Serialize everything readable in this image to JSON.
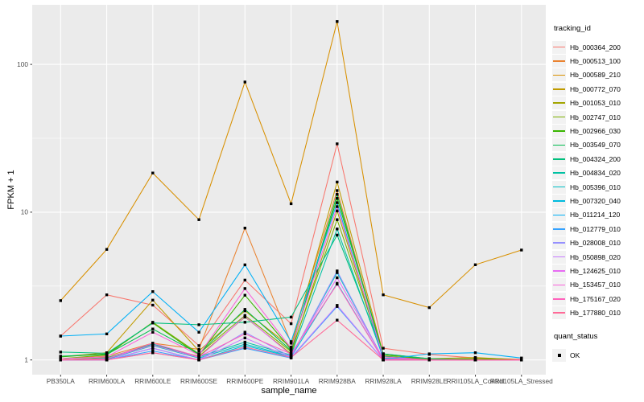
{
  "chart_data": {
    "type": "line",
    "title": "",
    "xlabel": "sample_name",
    "ylabel": "FPKM + 1",
    "y_scale": "log10",
    "ylim": [
      0.8,
      253
    ],
    "y_ticks": [
      1,
      10,
      100
    ],
    "y_tick_labels": [
      "1",
      "10",
      "100"
    ],
    "y_minor_ticks": [
      3.162,
      31.62
    ],
    "grid": true,
    "legend_position": "right",
    "legend_title": "tracking_id",
    "quant_legend_title": "quant_status",
    "quant_status_value": "OK",
    "marker": "black-square",
    "categories": [
      "PB350LA",
      "RRIM600LA",
      "RRIM600LE",
      "RRIM600SE",
      "RRIM600PE",
      "RRIM901LA",
      "RRIM928BA",
      "RRIM928LA",
      "RRIM928LE",
      "RRII105LA_Control",
      "RRII105LA_Stressed"
    ],
    "series": [
      {
        "name": "Hb_000364_200",
        "color": "#F8766D",
        "values": [
          1.45,
          2.76,
          2.35,
          1.25,
          3.47,
          1.76,
          29,
          1.2,
          1.09,
          1.03,
          1.01
        ]
      },
      {
        "name": "Hb_000513_100",
        "color": "#EA8331",
        "values": [
          1.02,
          1.06,
          1.3,
          1.18,
          7.8,
          1.3,
          14.0,
          1.06,
          1.01,
          1.02,
          1.0
        ]
      },
      {
        "name": "Hb_000589_210",
        "color": "#D89000",
        "values": [
          2.52,
          5.6,
          18.4,
          8.9,
          76,
          11.4,
          195,
          2.76,
          2.26,
          4.41,
          5.54
        ]
      },
      {
        "name": "Hb_000772_070",
        "color": "#C09B00",
        "values": [
          1.05,
          1.12,
          2.54,
          1.15,
          2.15,
          1.22,
          16.0,
          1.1,
          1.02,
          1.04,
          1.0
        ]
      },
      {
        "name": "Hb_001053_010",
        "color": "#A3A500",
        "values": [
          1.0,
          1.04,
          1.26,
          1.06,
          1.95,
          1.1,
          10.2,
          1.05,
          1.0,
          1.0,
          1.0
        ]
      },
      {
        "name": "Hb_002747_010",
        "color": "#7CAE00",
        "values": [
          1.02,
          1.08,
          1.8,
          1.1,
          2.0,
          1.14,
          8.9,
          1.08,
          1.02,
          1.0,
          1.0
        ]
      },
      {
        "name": "Hb_002966_030",
        "color": "#39B600",
        "values": [
          1.05,
          1.1,
          1.78,
          1.08,
          2.74,
          1.18,
          12.4,
          1.1,
          1.0,
          1.02,
          1.0
        ]
      },
      {
        "name": "Hb_003549_070",
        "color": "#00BB4E",
        "values": [
          1.06,
          1.09,
          1.62,
          1.1,
          2.2,
          1.16,
          13.2,
          1.06,
          1.0,
          1.0,
          1.0
        ]
      },
      {
        "name": "Hb_004324_200",
        "color": "#00BF7D",
        "values": [
          1.13,
          1.11,
          1.78,
          1.73,
          1.8,
          1.95,
          7.0,
          1.1,
          1.02,
          1.0,
          1.0
        ]
      },
      {
        "name": "Hb_004834_020",
        "color": "#00C1A3",
        "values": [
          1.0,
          1.03,
          1.28,
          1.05,
          1.32,
          1.08,
          7.7,
          1.03,
          1.0,
          1.0,
          1.0
        ]
      },
      {
        "name": "Hb_005396_010",
        "color": "#00BFC4",
        "values": [
          1.0,
          1.01,
          1.25,
          1.03,
          1.28,
          1.06,
          3.9,
          1.01,
          1.0,
          1.0,
          1.0
        ]
      },
      {
        "name": "Hb_007320_040",
        "color": "#00BADE",
        "values": [
          1.0,
          1.0,
          1.2,
          1.0,
          1.25,
          1.05,
          3.3,
          1.0,
          1.0,
          1.0,
          1.0
        ]
      },
      {
        "name": "Hb_011214_120",
        "color": "#00B0F6",
        "values": [
          1.45,
          1.5,
          2.9,
          1.54,
          4.4,
          1.33,
          11.6,
          1.01,
          1.1,
          1.12,
          1.03
        ]
      },
      {
        "name": "Hb_012779_010",
        "color": "#35A2FF",
        "values": [
          1.0,
          1.0,
          1.15,
          1.0,
          1.2,
          1.03,
          2.3,
          1.0,
          1.0,
          1.0,
          1.0
        ]
      },
      {
        "name": "Hb_028008_010",
        "color": "#9590FF",
        "values": [
          1.0,
          1.0,
          1.12,
          1.0,
          1.54,
          1.05,
          4.0,
          1.0,
          1.0,
          1.0,
          1.0
        ]
      },
      {
        "name": "Hb_050898_020",
        "color": "#C77CFF",
        "values": [
          1.0,
          1.0,
          1.2,
          1.0,
          1.41,
          1.04,
          2.34,
          1.0,
          1.0,
          1.0,
          1.0
        ]
      },
      {
        "name": "Hb_124625_010",
        "color": "#E76BF3",
        "values": [
          1.0,
          1.02,
          1.26,
          1.04,
          1.97,
          1.08,
          3.6,
          1.02,
          1.0,
          1.0,
          1.0
        ]
      },
      {
        "name": "Hb_153457_010",
        "color": "#FA62DB",
        "values": [
          1.02,
          1.05,
          1.54,
          1.08,
          3.04,
          1.2,
          10.9,
          1.05,
          1.0,
          1.0,
          1.0
        ]
      },
      {
        "name": "Hb_175167_020",
        "color": "#FF62BC",
        "values": [
          1.0,
          1.02,
          1.3,
          1.05,
          1.5,
          1.1,
          3.26,
          1.0,
          1.0,
          1.0,
          1.0
        ]
      },
      {
        "name": "Hb_177880_010",
        "color": "#FF6A98",
        "values": [
          1.0,
          1.0,
          1.12,
          1.0,
          1.22,
          1.04,
          1.86,
          1.0,
          1.0,
          1.0,
          1.0
        ]
      }
    ],
    "theme": {
      "panel_bg": "#EBEBEB",
      "grid_color": "#FFFFFF",
      "tick_text_color": "#4D4D4D",
      "tick_mark_color": "#333333",
      "marker_color": "#000000",
      "legend_key_bg": "#F2F2F2"
    }
  }
}
